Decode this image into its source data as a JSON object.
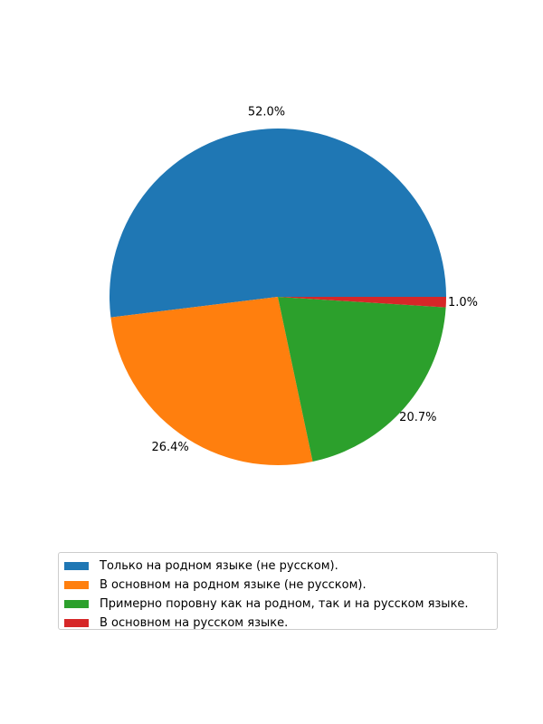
{
  "chart_data": {
    "type": "pie",
    "title": "",
    "start_angle_deg": 0,
    "direction": "counterclockwise",
    "slices": [
      {
        "label": "Только на родном языке (не русском).",
        "value": 52.0,
        "pct_label": "52.0%",
        "color": "#1f77b4"
      },
      {
        "label": "В основном на родном языке (не русском).",
        "value": 26.4,
        "pct_label": "26.4%",
        "color": "#ff7f0e"
      },
      {
        "label": "Примерно поровну как на родном, так и на русском языке.",
        "value": 20.7,
        "pct_label": "20.7%",
        "color": "#2ca02c"
      },
      {
        "label": "В основном на русском языке.",
        "value": 1.0,
        "pct_label": "1.0%",
        "color": "#d62728"
      }
    ],
    "legend_position": "bottom-center"
  }
}
